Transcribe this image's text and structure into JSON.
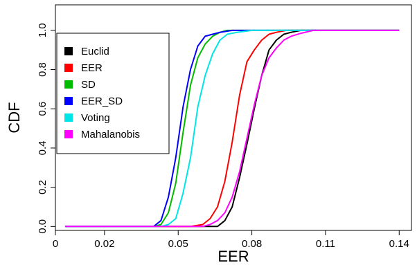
{
  "chart_data": {
    "type": "line",
    "xlabel": "EER",
    "ylabel": "CDF",
    "xlim": [
      0.0,
      0.145
    ],
    "ylim": [
      -0.02,
      1.13
    ],
    "xticks": [
      0,
      0.02,
      0.05,
      0.08,
      0.11,
      0.14
    ],
    "xtick_labels": [
      "0",
      "0.02",
      "0.05",
      "0.08",
      "0.11",
      "0.14"
    ],
    "yticks": [
      0,
      0.2,
      0.4,
      0.6,
      0.8,
      1.0
    ],
    "ytick_labels": [
      "0.0",
      "0.2",
      "0.4",
      "0.6",
      "0.8",
      "1.0"
    ],
    "grid": false,
    "legend_position": "left",
    "series": [
      {
        "name": "Euclid",
        "color": "#000000",
        "points": [
          [
            0.004,
            0
          ],
          [
            0.06,
            0
          ],
          [
            0.066,
            0
          ],
          [
            0.069,
            0.03
          ],
          [
            0.072,
            0.1
          ],
          [
            0.075,
            0.25
          ],
          [
            0.078,
            0.42
          ],
          [
            0.081,
            0.6
          ],
          [
            0.084,
            0.77
          ],
          [
            0.087,
            0.9
          ],
          [
            0.09,
            0.95
          ],
          [
            0.093,
            0.98
          ],
          [
            0.096,
            0.99
          ],
          [
            0.1,
            1.0
          ],
          [
            0.14,
            1.0
          ]
        ]
      },
      {
        "name": "EER",
        "color": "#ff0000",
        "points": [
          [
            0.004,
            0
          ],
          [
            0.055,
            0
          ],
          [
            0.06,
            0.01
          ],
          [
            0.063,
            0.04
          ],
          [
            0.066,
            0.1
          ],
          [
            0.069,
            0.23
          ],
          [
            0.072,
            0.43
          ],
          [
            0.075,
            0.67
          ],
          [
            0.078,
            0.84
          ],
          [
            0.081,
            0.9
          ],
          [
            0.084,
            0.95
          ],
          [
            0.087,
            0.98
          ],
          [
            0.09,
            0.99
          ],
          [
            0.094,
            1.0
          ],
          [
            0.14,
            1.0
          ]
        ]
      },
      {
        "name": "SD",
        "color": "#00bb00",
        "points": [
          [
            0.004,
            0
          ],
          [
            0.04,
            0
          ],
          [
            0.043,
            0.01
          ],
          [
            0.046,
            0.07
          ],
          [
            0.049,
            0.22
          ],
          [
            0.052,
            0.48
          ],
          [
            0.055,
            0.72
          ],
          [
            0.058,
            0.86
          ],
          [
            0.061,
            0.93
          ],
          [
            0.064,
            0.97
          ],
          [
            0.067,
            0.99
          ],
          [
            0.07,
            1.0
          ],
          [
            0.14,
            1.0
          ]
        ]
      },
      {
        "name": "EER_SD",
        "color": "#0000ff",
        "points": [
          [
            0.004,
            0
          ],
          [
            0.04,
            0
          ],
          [
            0.043,
            0.03
          ],
          [
            0.046,
            0.15
          ],
          [
            0.049,
            0.35
          ],
          [
            0.052,
            0.61
          ],
          [
            0.055,
            0.8
          ],
          [
            0.058,
            0.92
          ],
          [
            0.061,
            0.97
          ],
          [
            0.064,
            0.98
          ],
          [
            0.067,
            0.99
          ],
          [
            0.072,
            1.0
          ],
          [
            0.14,
            1.0
          ]
        ]
      },
      {
        "name": "Voting",
        "color": "#00e5e5",
        "points": [
          [
            0.004,
            0
          ],
          [
            0.043,
            0
          ],
          [
            0.046,
            0.01
          ],
          [
            0.049,
            0.04
          ],
          [
            0.052,
            0.17
          ],
          [
            0.055,
            0.35
          ],
          [
            0.058,
            0.61
          ],
          [
            0.061,
            0.77
          ],
          [
            0.064,
            0.88
          ],
          [
            0.067,
            0.95
          ],
          [
            0.07,
            0.98
          ],
          [
            0.074,
            0.99
          ],
          [
            0.08,
            1.0
          ],
          [
            0.14,
            1.0
          ]
        ]
      },
      {
        "name": "Mahalanobis",
        "color": "#ff00ff",
        "points": [
          [
            0.004,
            0
          ],
          [
            0.06,
            0
          ],
          [
            0.063,
            0.01
          ],
          [
            0.066,
            0.03
          ],
          [
            0.069,
            0.07
          ],
          [
            0.072,
            0.15
          ],
          [
            0.075,
            0.28
          ],
          [
            0.078,
            0.45
          ],
          [
            0.081,
            0.62
          ],
          [
            0.084,
            0.77
          ],
          [
            0.087,
            0.86
          ],
          [
            0.09,
            0.91
          ],
          [
            0.093,
            0.95
          ],
          [
            0.096,
            0.97
          ],
          [
            0.1,
            0.985
          ],
          [
            0.105,
            1.0
          ],
          [
            0.14,
            1.0
          ]
        ]
      }
    ]
  }
}
